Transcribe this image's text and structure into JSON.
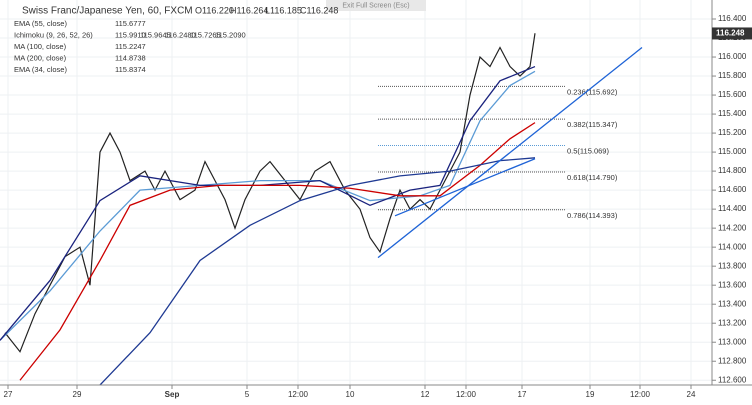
{
  "chart_data": {
    "type": "line",
    "title": "Swiss Franc/Japanese Yen, 60, FXCM",
    "ohlc": [
      "O116.220",
      "H116.264",
      "L116.185",
      "C116.248"
    ],
    "exit_button": "Exit Full Screen (Esc)",
    "indicators": [
      {
        "name": "EMA (55, close)",
        "values": [
          "115.6777"
        ],
        "colors": [
          "#5b9bd5"
        ]
      },
      {
        "name": "Ichimoku (9, 26, 52, 26)",
        "values": [
          "115.9910",
          "115.9645",
          "116.2480",
          "115.7265",
          "115.2090"
        ],
        "colors": [
          "#1e88e5",
          "#b71c1c",
          "#43a047",
          "#2e7d32",
          "#e53935"
        ]
      },
      {
        "name": "MA (100, close)",
        "values": [
          "115.2247"
        ],
        "colors": [
          "#cc0000"
        ]
      },
      {
        "name": "MA (200, close)",
        "values": [
          "114.8738"
        ],
        "colors": [
          "#1f3a93"
        ]
      },
      {
        "name": "EMA (34, close)",
        "values": [
          "115.8374"
        ],
        "colors": [
          "#1a237e"
        ]
      }
    ],
    "last_price": 116.248,
    "xlim": [
      0,
      71.2
    ],
    "ylim": [
      112.55,
      116.6
    ],
    "xticks": [
      {
        "value": 0.8,
        "label": "27"
      },
      {
        "value": 7.7,
        "label": "29"
      },
      {
        "value": 17.2,
        "label": "Sep"
      },
      {
        "value": 24.7,
        "label": "5"
      },
      {
        "value": 29.8,
        "label": "12:00"
      },
      {
        "value": 35,
        "label": "10"
      },
      {
        "value": 42.5,
        "label": "12"
      },
      {
        "value": 46.6,
        "label": "12:00"
      },
      {
        "value": 52.2,
        "label": "17"
      },
      {
        "value": 59,
        "label": "19"
      },
      {
        "value": 64,
        "label": "12:00"
      },
      {
        "value": 69.1,
        "label": "24"
      }
    ],
    "yticks": [
      {
        "value": 112.6,
        "label": "112.600"
      },
      {
        "value": 112.8,
        "label": "112.800"
      },
      {
        "value": 113.0,
        "label": "113.000"
      },
      {
        "value": 113.2,
        "label": "113.200"
      },
      {
        "value": 113.4,
        "label": "113.400"
      },
      {
        "value": 113.6,
        "label": "113.600"
      },
      {
        "value": 113.8,
        "label": "113.800"
      },
      {
        "value": 114.0,
        "label": "114.000"
      },
      {
        "value": 114.2,
        "label": "114.200"
      },
      {
        "value": 114.4,
        "label": "114.400"
      },
      {
        "value": 114.6,
        "label": "114.600"
      },
      {
        "value": 114.8,
        "label": "114.800"
      },
      {
        "value": 115.0,
        "label": "115.000"
      },
      {
        "value": 115.2,
        "label": "115.200"
      },
      {
        "value": 115.4,
        "label": "115.400"
      },
      {
        "value": 115.6,
        "label": "115.600"
      },
      {
        "value": 115.8,
        "label": "115.800"
      },
      {
        "value": 116.0,
        "label": "116.000"
      },
      {
        "value": 116.2,
        "label": "116.200"
      },
      {
        "value": 116.4,
        "label": "116.400"
      }
    ],
    "grid": true,
    "fib_levels": [
      {
        "value": 115.692,
        "label": "0.236(115.692)",
        "color": "#555555"
      },
      {
        "value": 115.347,
        "label": "0.382(115.347)",
        "color": "#555555"
      },
      {
        "value": 115.069,
        "label": "0.5(115.069)",
        "color": "#5b9bd5"
      },
      {
        "value": 114.79,
        "label": "0.618(114.790)",
        "color": "#555555"
      },
      {
        "value": 114.393,
        "label": "0.786(114.393)",
        "color": "#555555"
      }
    ],
    "fib_x": [
      37.8,
      56.5
    ],
    "trendlines": [
      {
        "x": [
          37.8,
          64.2
        ],
        "values": [
          113.89,
          116.1
        ],
        "color": "#1e63d6"
      },
      {
        "x": [
          39.5,
          53.5
        ],
        "values": [
          114.33,
          114.93
        ],
        "color": "#1e63d6"
      }
    ],
    "series": [
      {
        "color": "#222222",
        "x": [
          0.5,
          2,
          3.5,
          5,
          6.5,
          8,
          9,
          10,
          11,
          12,
          13,
          14.5,
          15.5,
          16.5,
          18,
          19.5,
          20.5,
          21.5,
          22.5,
          23.5,
          24.5,
          26,
          27,
          28.5,
          30,
          31.5,
          33,
          34.5,
          36,
          37,
          38,
          39,
          40,
          41,
          42,
          43,
          44,
          45,
          46,
          47,
          48,
          49,
          50,
          51,
          52,
          53,
          53.5
        ],
        "values": [
          113.1,
          112.9,
          113.3,
          113.6,
          113.9,
          114.0,
          113.6,
          115.0,
          115.2,
          115.0,
          114.7,
          114.8,
          114.6,
          114.8,
          114.5,
          114.6,
          114.9,
          114.7,
          114.5,
          114.2,
          114.5,
          114.8,
          114.9,
          114.7,
          114.5,
          114.8,
          114.9,
          114.6,
          114.4,
          114.1,
          113.95,
          114.3,
          114.6,
          114.4,
          114.5,
          114.4,
          114.6,
          114.8,
          115.0,
          115.6,
          116.0,
          115.9,
          116.1,
          115.9,
          115.8,
          115.9,
          116.25
        ]
      },
      {
        "color": "#5b9bd5",
        "x": [
          0,
          5,
          10,
          14,
          20,
          26,
          32,
          37,
          42,
          45,
          48,
          51,
          53.5
        ],
        "values": [
          113.02,
          113.54,
          114.17,
          114.6,
          114.65,
          114.7,
          114.7,
          114.49,
          114.54,
          114.65,
          115.33,
          115.7,
          115.85
        ]
      },
      {
        "color": "#1a237e",
        "x": [
          0,
          5,
          10,
          14,
          20,
          26,
          32,
          37,
          41,
          44,
          47,
          50,
          53.5
        ],
        "values": [
          113.02,
          113.65,
          114.49,
          114.75,
          114.65,
          114.65,
          114.7,
          114.44,
          114.6,
          114.65,
          115.33,
          115.75,
          115.9
        ]
      },
      {
        "color": "#cc0000",
        "x": [
          2,
          6,
          10,
          13,
          17,
          22,
          30,
          35,
          40,
          44,
          48,
          51,
          53.5
        ],
        "values": [
          112.6,
          113.13,
          113.86,
          114.44,
          114.6,
          114.65,
          114.65,
          114.62,
          114.54,
          114.54,
          114.86,
          115.14,
          115.31
        ]
      },
      {
        "color": "#1f3a93",
        "x": [
          10,
          15,
          20,
          25,
          30,
          35,
          40,
          45,
          50,
          53.5
        ],
        "values": [
          112.55,
          113.1,
          113.86,
          114.23,
          114.49,
          114.65,
          114.75,
          114.8,
          114.91,
          114.94
        ]
      }
    ]
  }
}
